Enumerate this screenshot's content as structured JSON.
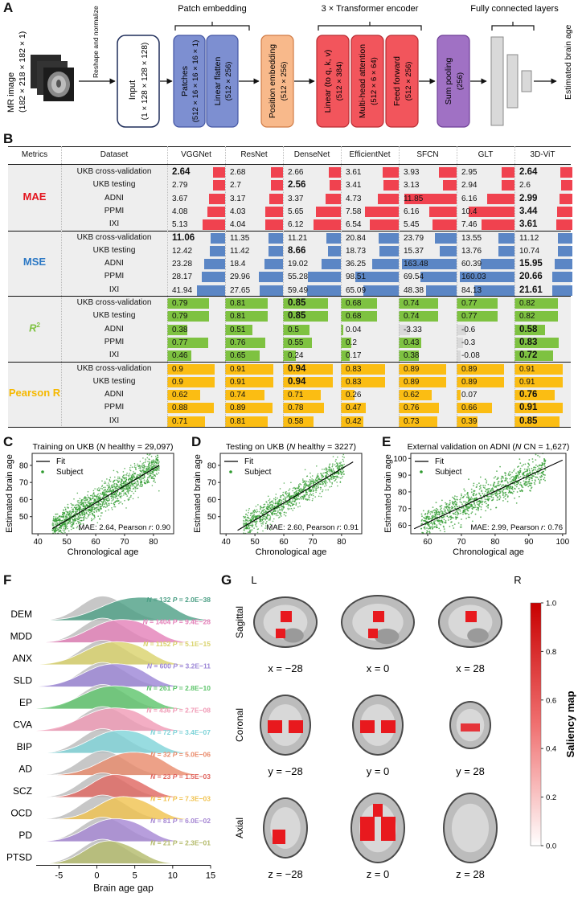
{
  "panel_letters": {
    "a": "A",
    "b": "B",
    "c": "C",
    "d": "D",
    "e": "E",
    "f": "F",
    "g": "G"
  },
  "panelA": {
    "mr_image": "MR image",
    "mr_dims": "(182 × 218 × 182 × 1)",
    "reshape": "Reshape and normalize",
    "input": "Input",
    "input_dims": "(1 × 128 × 128 × 128)",
    "patch_embedding": "Patch embedding",
    "patches": "Patches",
    "patches_dims": "(512 × 16 × 16 × 16 × 1)",
    "linear_flatten": "Linear flatten",
    "linear_flatten_dims": "(512 × 256)",
    "position_embedding": "Position embedding",
    "position_dims": "(512 × 256)",
    "transformer": "3 × Transformer encoder",
    "linear_qkv": "Linear (to q, k, v)",
    "linear_qkv_dims": "(512 × 384)",
    "mha": "Multi-head attention",
    "mha_dims": "(512 × 6 × 64)",
    "ff": "Feed forward",
    "ff_dims": "(512 × 256)",
    "sum_pooling": "Sum pooling",
    "sum_dims": "(256)",
    "fc": "Fully connected layers",
    "output": "Estimated brain age"
  },
  "panelB": {
    "header": [
      "Metrics",
      "Dataset",
      "VGGNet",
      "ResNet",
      "DenseNet",
      "EfficientNet",
      "SFCN",
      "GLT",
      "3D-ViT"
    ],
    "datasets": [
      "UKB cross-validation",
      "UKB testing",
      "ADNI",
      "PPMI",
      "IXI"
    ],
    "colors": {
      "MAE": "#f0424f",
      "MSE": "#5b86c5",
      "R2": "#7ec241",
      "PR": "#fbbd13",
      "neg": "#d9d9d9"
    },
    "groups": [
      {
        "metric": "MAE",
        "color": "#e3141e",
        "values": [
          [
            "2.64",
            "2.68",
            "2.66",
            "3.61",
            "3.93",
            "2.95",
            "2.64"
          ],
          [
            "2.79",
            "2.7",
            "2.56",
            "3.41",
            "3.13",
            "2.94",
            "2.6"
          ],
          [
            "3.67",
            "3.17",
            "3.37",
            "4.73",
            "11.85",
            "6.16",
            "2.99"
          ],
          [
            "4.08",
            "4.03",
            "5.65",
            "7.58",
            "6.16",
            "10.4",
            "3.44"
          ],
          [
            "5.13",
            "4.04",
            "6.12",
            "6.54",
            "5.45",
            "7.46",
            "3.61"
          ]
        ]
      },
      {
        "metric": "MSE",
        "color": "#2c78c4",
        "values": [
          [
            "11.06",
            "11.35",
            "11.21",
            "20.84",
            "23.79",
            "13.55",
            "11.12"
          ],
          [
            "12.42",
            "11.42",
            "8.66",
            "18.73",
            "15.37",
            "13.76",
            "10.74"
          ],
          [
            "23.28",
            "18.4",
            "19.02",
            "36.25",
            "163.48",
            "60.39",
            "15.95"
          ],
          [
            "28.17",
            "29.96",
            "55.28",
            "98.51",
            "69.54",
            "160.03",
            "20.66"
          ],
          [
            "41.94",
            "27.65",
            "59.49",
            "65.09",
            "48.38",
            "84.13",
            "21.61"
          ]
        ]
      },
      {
        "metric": "R2",
        "color": "#7ec241",
        "values": [
          [
            "0.79",
            "0.81",
            "0.85",
            "0.68",
            "0.74",
            "0.77",
            "0.82"
          ],
          [
            "0.79",
            "0.81",
            "0.85",
            "0.68",
            "0.74",
            "0.77",
            "0.82"
          ],
          [
            "0.38",
            "0.51",
            "0.5",
            "0.04",
            "-3.33",
            "-0.6",
            "0.58"
          ],
          [
            "0.77",
            "0.76",
            "0.55",
            "0.2",
            "0.43",
            "-0.3",
            "0.83"
          ],
          [
            "0.46",
            "0.65",
            "0.24",
            "0.17",
            "0.38",
            "-0.08",
            "0.72"
          ]
        ]
      },
      {
        "metric": "Pearson R",
        "color": "#f5b800",
        "values": [
          [
            "0.9",
            "0.91",
            "0.94",
            "0.83",
            "0.89",
            "0.89",
            "0.91"
          ],
          [
            "0.9",
            "0.91",
            "0.94",
            "0.83",
            "0.89",
            "0.89",
            "0.91"
          ],
          [
            "0.62",
            "0.74",
            "0.71",
            "0.26",
            "0.62",
            "0.07",
            "0.76"
          ],
          [
            "0.88",
            "0.89",
            "0.78",
            "0.47",
            "0.76",
            "0.66",
            "0.91"
          ],
          [
            "0.71",
            "0.81",
            "0.58",
            "0.42",
            "0.73",
            "0.39",
            "0.85"
          ]
        ]
      }
    ],
    "bold": [
      [
        [
          0,
          0
        ],
        [
          0,
          6
        ],
        [
          1,
          2
        ],
        [
          2,
          6
        ],
        [
          3,
          6
        ],
        [
          4,
          6
        ]
      ],
      [
        [
          0,
          0
        ],
        [
          1,
          2
        ],
        [
          2,
          6
        ],
        [
          3,
          6
        ],
        [
          4,
          6
        ]
      ],
      [
        [
          0,
          2
        ],
        [
          1,
          2
        ],
        [
          2,
          6
        ],
        [
          3,
          6
        ],
        [
          4,
          6
        ]
      ],
      [
        [
          0,
          2
        ],
        [
          1,
          2
        ],
        [
          2,
          6
        ],
        [
          3,
          6
        ],
        [
          4,
          6
        ]
      ]
    ]
  },
  "chart_data": [
    {
      "type": "scatter",
      "panel": "C",
      "title_pre": "Training on UKB (",
      "title_n": "N",
      "title_post": " healthy = 29,097)",
      "xlabel": "Chronological age",
      "ylabel": "Estimated brain age",
      "xlim": [
        38,
        87
      ],
      "ylim": [
        40,
        87
      ],
      "xticks": [
        40,
        50,
        60,
        70,
        80
      ],
      "yticks": [
        50,
        60,
        70,
        80
      ],
      "x_range": [
        45,
        82
      ],
      "fit": [
        [
          45,
          43
        ],
        [
          82,
          80
        ]
      ],
      "spread": 13,
      "n_points": 1600,
      "legend": [
        "Fit",
        "Subject"
      ],
      "annotation_pre": "MAE: 2.64, Pearson ",
      "annotation_r": "r",
      "annotation_post": ": 0.90"
    },
    {
      "type": "scatter",
      "panel": "D",
      "title_pre": "Testing on UKB (",
      "title_n": "N",
      "title_post": " healthy = 3227)",
      "xlabel": "Chronological age",
      "ylabel": "Estimated brain age",
      "xlim": [
        38,
        87
      ],
      "ylim": [
        40,
        87
      ],
      "xticks": [
        40,
        50,
        60,
        70,
        80
      ],
      "yticks": [
        50,
        60,
        70,
        80
      ],
      "x_range": [
        46,
        81
      ],
      "fit": [
        [
          44,
          42
        ],
        [
          84,
          82
        ]
      ],
      "spread": 11,
      "n_points": 1100,
      "legend": [
        "Fit",
        "Subject"
      ],
      "annotation_pre": "MAE: 2.60, Pearson ",
      "annotation_r": "r",
      "annotation_post": ": 0.91"
    },
    {
      "type": "scatter",
      "panel": "E",
      "title_pre": "External validation on ADNI (",
      "title_n": "N",
      "title_post": " CN = 1,627)",
      "xlabel": "Chronological age",
      "ylabel": "Estimated brain age",
      "xlim": [
        55,
        101
      ],
      "ylim": [
        55,
        103
      ],
      "xticks": [
        60,
        70,
        80,
        90,
        100
      ],
      "yticks": [
        60,
        70,
        80,
        90,
        100
      ],
      "x_range": [
        58,
        95
      ],
      "fit": [
        [
          56,
          58
        ],
        [
          100,
          99
        ]
      ],
      "spread": 14,
      "n_points": 1000,
      "legend": [
        "Fit",
        "Subject"
      ],
      "annotation_pre": "MAE: 2.99, Pearson ",
      "annotation_r": "r",
      "annotation_post": ": 0.76"
    },
    {
      "type": "ridgeline",
      "panel": "F",
      "xlabel": "Brain age gap",
      "xlim": [
        -8,
        15
      ],
      "xticks": [
        -5,
        0,
        5,
        10,
        15
      ],
      "series": [
        {
          "name": "DEM",
          "N": "132",
          "P": "2.0E−38",
          "color": "#4c9f85",
          "mean": 4.5,
          "sd": 4
        },
        {
          "name": "MDD",
          "N": "1404",
          "P": "9.4E−28",
          "color": "#e47fb8",
          "mean": 2.5,
          "sd": 3.5
        },
        {
          "name": "ANX",
          "N": "1152",
          "P": "5.1E−15",
          "color": "#d9d26a",
          "mean": 1.8,
          "sd": 3.5
        },
        {
          "name": "SLD",
          "N": "600",
          "P": "3.2E−11",
          "color": "#9b85d6",
          "mean": 1.6,
          "sd": 3.5
        },
        {
          "name": "EP",
          "N": "261",
          "P": "2.8E−10",
          "color": "#5cc46a",
          "mean": 1.5,
          "sd": 3.6
        },
        {
          "name": "CVA",
          "N": "436",
          "P": "2.7E−08",
          "color": "#f09ab5",
          "mean": 1.5,
          "sd": 3.6
        },
        {
          "name": "BIP",
          "N": "72",
          "P": "3.4E−07",
          "color": "#7ed3d8",
          "mean": 2.5,
          "sd": 3.4
        },
        {
          "name": "AD",
          "N": "32",
          "P": "5.0E−06",
          "color": "#e98a6a",
          "mean": 4,
          "sd": 3.5
        },
        {
          "name": "SCZ",
          "N": "23",
          "P": "1.5E−03",
          "color": "#e0655f",
          "mean": 2,
          "sd": 2.8
        },
        {
          "name": "OCD",
          "N": "17",
          "P": "7.3E−03",
          "color": "#f0c24e",
          "mean": 3,
          "sd": 3
        },
        {
          "name": "PD",
          "N": "81",
          "P": "6.0E−02",
          "color": "#a586d3",
          "mean": 1.8,
          "sd": 3.2
        },
        {
          "name": "PTSD",
          "N": "21",
          "P": "2.3E−01",
          "color": "#b3ba6a",
          "mean": 1.2,
          "sd": 2.8
        }
      ]
    }
  ],
  "panelG": {
    "left": "L",
    "right": "R",
    "rows": [
      "Sagittal",
      "Coronal",
      "Axial"
    ],
    "coords": [
      [
        "x = −28",
        "x = 0",
        "x = 28"
      ],
      [
        "y = −28",
        "y = 0",
        "y = 28"
      ],
      [
        "z = −28",
        "z = 0",
        "z = 28"
      ]
    ],
    "colorbar_title": "Saliency map",
    "colorbar_ticks": [
      "1.0",
      "0.8",
      "0.6",
      "0.4",
      "0.2",
      "0.0"
    ]
  }
}
